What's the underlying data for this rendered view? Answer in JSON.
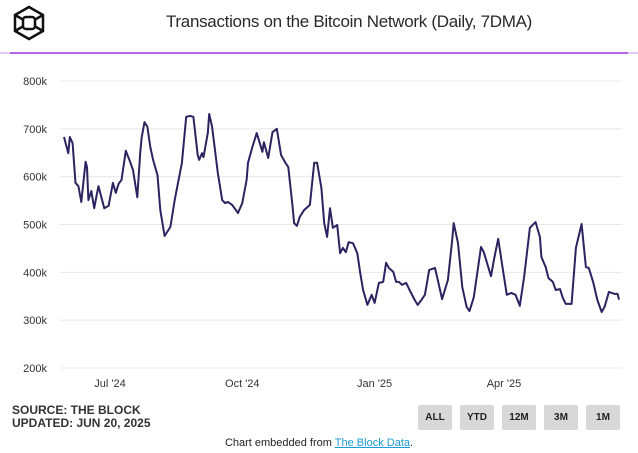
{
  "header": {
    "title": "Transactions on the Bitcoin Network (Daily, 7DMA)",
    "logo_icon": "the-block-cube-logo"
  },
  "colors": {
    "line": "#2a2460",
    "rule": "#b365e6",
    "grid": "#e8e8e8",
    "button_bg": "#d8d8d8",
    "link": "#1a9ad6"
  },
  "chart_data": {
    "type": "line",
    "title": "Transactions on the Bitcoin Network (Daily, 7DMA)",
    "xlabel": "",
    "ylabel": "",
    "xlim": [
      "2024-05-30",
      "2025-06-20"
    ],
    "ylim": [
      200000,
      800000
    ],
    "grid": true,
    "y_ticks": [
      {
        "value": 200000,
        "label": "200k"
      },
      {
        "value": 300000,
        "label": "300k"
      },
      {
        "value": 400000,
        "label": "400k"
      },
      {
        "value": 500000,
        "label": "500k"
      },
      {
        "value": 600000,
        "label": "600k"
      },
      {
        "value": 700000,
        "label": "700k"
      },
      {
        "value": 800000,
        "label": "800k"
      }
    ],
    "x_ticks": [
      {
        "date": "2024-07-01",
        "label": "Jul '24"
      },
      {
        "date": "2024-10-01",
        "label": "Oct '24"
      },
      {
        "date": "2025-01-01",
        "label": "Jan '25"
      },
      {
        "date": "2025-04-01",
        "label": "Apr '25"
      }
    ],
    "series": [
      {
        "name": "Transactions (7DMA)",
        "points": [
          [
            "2024-05-30",
            683
          ],
          [
            "2024-06-02",
            649
          ],
          [
            "2024-06-03",
            683
          ],
          [
            "2024-06-05",
            670
          ],
          [
            "2024-06-07",
            587
          ],
          [
            "2024-06-09",
            580
          ],
          [
            "2024-06-11",
            547
          ],
          [
            "2024-06-14",
            631
          ],
          [
            "2024-06-15",
            620
          ],
          [
            "2024-06-16",
            551
          ],
          [
            "2024-06-18",
            570
          ],
          [
            "2024-06-20",
            534
          ],
          [
            "2024-06-22",
            566
          ],
          [
            "2024-06-23",
            580
          ],
          [
            "2024-06-27",
            534
          ],
          [
            "2024-06-30",
            539
          ],
          [
            "2024-07-03",
            587
          ],
          [
            "2024-07-05",
            566
          ],
          [
            "2024-07-07",
            585
          ],
          [
            "2024-07-09",
            593
          ],
          [
            "2024-07-12",
            654
          ],
          [
            "2024-07-15",
            631
          ],
          [
            "2024-07-17",
            614
          ],
          [
            "2024-07-20",
            557
          ],
          [
            "2024-07-22",
            649
          ],
          [
            "2024-07-23",
            681
          ],
          [
            "2024-07-25",
            714
          ],
          [
            "2024-07-27",
            704
          ],
          [
            "2024-07-29",
            662
          ],
          [
            "2024-07-31",
            635
          ],
          [
            "2024-08-03",
            603
          ],
          [
            "2024-08-05",
            530
          ],
          [
            "2024-08-08",
            476
          ],
          [
            "2024-08-12",
            495
          ],
          [
            "2024-08-15",
            551
          ],
          [
            "2024-08-20",
            629
          ],
          [
            "2024-08-23",
            725
          ],
          [
            "2024-08-26",
            727
          ],
          [
            "2024-08-28",
            725
          ],
          [
            "2024-08-31",
            645
          ],
          [
            "2024-09-01",
            635
          ],
          [
            "2024-09-03",
            649
          ],
          [
            "2024-09-04",
            641
          ],
          [
            "2024-09-07",
            691
          ],
          [
            "2024-09-08",
            731
          ],
          [
            "2024-09-10",
            704
          ],
          [
            "2024-09-14",
            608
          ],
          [
            "2024-09-17",
            551
          ],
          [
            "2024-09-19",
            545
          ],
          [
            "2024-09-21",
            547
          ],
          [
            "2024-09-24",
            541
          ],
          [
            "2024-09-28",
            524
          ],
          [
            "2024-10-01",
            545
          ],
          [
            "2024-10-04",
            593
          ],
          [
            "2024-10-05",
            629
          ],
          [
            "2024-10-08",
            662
          ],
          [
            "2024-10-11",
            691
          ],
          [
            "2024-10-15",
            652
          ],
          [
            "2024-10-16",
            672
          ],
          [
            "2024-10-19",
            639
          ],
          [
            "2024-10-22",
            693
          ],
          [
            "2024-10-25",
            700
          ],
          [
            "2024-10-28",
            645
          ],
          [
            "2024-10-31",
            629
          ],
          [
            "2024-11-02",
            620
          ],
          [
            "2024-11-05",
            537
          ],
          [
            "2024-11-06",
            503
          ],
          [
            "2024-11-08",
            497
          ],
          [
            "2024-11-10",
            516
          ],
          [
            "2024-11-13",
            530
          ],
          [
            "2024-11-17",
            541
          ],
          [
            "2024-11-20",
            629
          ],
          [
            "2024-11-22",
            629
          ],
          [
            "2024-11-25",
            576
          ],
          [
            "2024-11-27",
            503
          ],
          [
            "2024-11-29",
            474
          ],
          [
            "2024-12-01",
            534
          ],
          [
            "2024-12-03",
            493
          ],
          [
            "2024-12-06",
            499
          ],
          [
            "2024-12-08",
            440
          ],
          [
            "2024-12-10",
            451
          ],
          [
            "2024-12-12",
            442
          ],
          [
            "2024-12-14",
            463
          ],
          [
            "2024-12-17",
            461
          ],
          [
            "2024-12-20",
            440
          ],
          [
            "2024-12-22",
            399
          ],
          [
            "2024-12-24",
            363
          ],
          [
            "2024-12-27",
            332
          ],
          [
            "2024-12-30",
            353
          ],
          [
            "2025-01-01",
            336
          ],
          [
            "2025-01-04",
            378
          ],
          [
            "2025-01-07",
            380
          ],
          [
            "2025-01-09",
            420
          ],
          [
            "2025-01-11",
            409
          ],
          [
            "2025-01-14",
            401
          ],
          [
            "2025-01-16",
            380
          ],
          [
            "2025-01-18",
            380
          ],
          [
            "2025-01-20",
            374
          ],
          [
            "2025-01-23",
            378
          ],
          [
            "2025-01-26",
            359
          ],
          [
            "2025-01-29",
            342
          ],
          [
            "2025-01-31",
            332
          ],
          [
            "2025-02-03",
            344
          ],
          [
            "2025-02-05",
            353
          ],
          [
            "2025-02-08",
            405
          ],
          [
            "2025-02-12",
            409
          ],
          [
            "2025-02-14",
            384
          ],
          [
            "2025-02-17",
            344
          ],
          [
            "2025-02-21",
            384
          ],
          [
            "2025-02-24",
            468
          ],
          [
            "2025-02-25",
            503
          ],
          [
            "2025-02-28",
            461
          ],
          [
            "2025-03-03",
            369
          ],
          [
            "2025-03-06",
            328
          ],
          [
            "2025-03-08",
            319
          ],
          [
            "2025-03-11",
            348
          ],
          [
            "2025-03-16",
            453
          ],
          [
            "2025-03-18",
            442
          ],
          [
            "2025-03-23",
            392
          ],
          [
            "2025-03-25",
            426
          ],
          [
            "2025-03-28",
            470
          ],
          [
            "2025-03-31",
            411
          ],
          [
            "2025-04-03",
            353
          ],
          [
            "2025-04-06",
            357
          ],
          [
            "2025-04-09",
            353
          ],
          [
            "2025-04-12",
            330
          ],
          [
            "2025-04-15",
            390
          ],
          [
            "2025-04-19",
            493
          ],
          [
            "2025-04-23",
            505
          ],
          [
            "2025-04-26",
            474
          ],
          [
            "2025-04-27",
            432
          ],
          [
            "2025-04-30",
            411
          ],
          [
            "2025-05-02",
            388
          ],
          [
            "2025-05-05",
            380
          ],
          [
            "2025-05-07",
            363
          ],
          [
            "2025-05-10",
            365
          ],
          [
            "2025-05-12",
            346
          ],
          [
            "2025-05-14",
            334
          ],
          [
            "2025-05-18",
            334
          ],
          [
            "2025-05-21",
            451
          ],
          [
            "2025-05-25",
            501
          ],
          [
            "2025-05-28",
            411
          ],
          [
            "2025-05-30",
            409
          ],
          [
            "2025-06-02",
            380
          ],
          [
            "2025-06-05",
            342
          ],
          [
            "2025-06-08",
            317
          ],
          [
            "2025-06-10",
            328
          ],
          [
            "2025-06-13",
            359
          ],
          [
            "2025-06-17",
            355
          ],
          [
            "2025-06-19",
            355
          ],
          [
            "2025-06-20",
            343
          ]
        ],
        "unit": "thousands"
      }
    ]
  },
  "source": {
    "line1": "SOURCE: THE BLOCK",
    "line2": "UPDATED: JUN 20, 2025"
  },
  "range_buttons": [
    "ALL",
    "YTD",
    "12M",
    "3M",
    "1M"
  ],
  "footer": {
    "prefix": "Chart embedded from ",
    "link": "The Block Data",
    "suffix": "."
  }
}
